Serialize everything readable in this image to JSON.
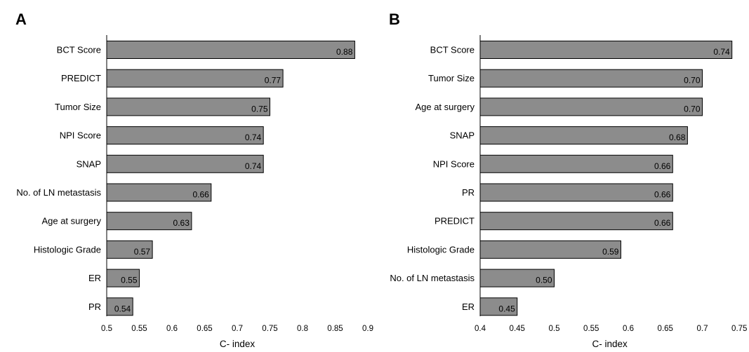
{
  "chart_data": [
    {
      "type": "bar",
      "orientation": "horizontal",
      "panel_label": "A",
      "xlabel": "C- index",
      "xlim": [
        0.5,
        0.9
      ],
      "x_ticks": [
        "0.5",
        "0.55",
        "0.6",
        "0.65",
        "0.7",
        "0.75",
        "0.8",
        "0.85",
        "0.9"
      ],
      "categories": [
        "BCT Score",
        "PREDICT",
        "Tumor Size",
        "NPI Score",
        "SNAP",
        "No. of LN metastasis",
        "Age at surgery",
        "Histologic Grade",
        "ER",
        "PR"
      ],
      "values": [
        0.88,
        0.77,
        0.75,
        0.74,
        0.74,
        0.66,
        0.63,
        0.57,
        0.55,
        0.54
      ],
      "value_labels": [
        "0.88",
        "0.77",
        "0.75",
        "0.74",
        "0.74",
        "0.66",
        "0.63",
        "0.57",
        "0.55",
        "0.54"
      ],
      "bar_color": "#8c8c8c",
      "grid": false
    },
    {
      "type": "bar",
      "orientation": "horizontal",
      "panel_label": "B",
      "xlabel": "C- index",
      "xlim": [
        0.4,
        0.75
      ],
      "x_ticks": [
        "0.4",
        "0.45",
        "0.5",
        "0.55",
        "0.6",
        "0.65",
        "0.7",
        "0.75"
      ],
      "categories": [
        "BCT Score",
        "Tumor Size",
        "Age at surgery",
        "SNAP",
        "NPI Score",
        "PR",
        "PREDICT",
        "Histologic Grade",
        "No. of LN metastasis",
        "ER"
      ],
      "values": [
        0.74,
        0.7,
        0.7,
        0.68,
        0.66,
        0.66,
        0.66,
        0.59,
        0.5,
        0.45
      ],
      "value_labels": [
        "0.74",
        "0.70",
        "0.70",
        "0.68",
        "0.66",
        "0.66",
        "0.66",
        "0.59",
        "0.50",
        "0.45"
      ],
      "bar_color": "#8c8c8c",
      "grid": false
    }
  ]
}
